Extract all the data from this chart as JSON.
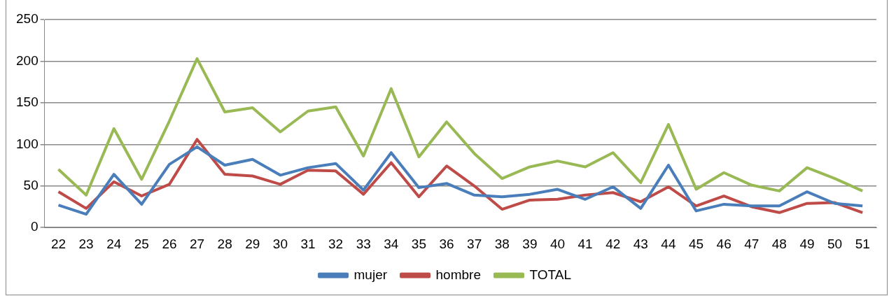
{
  "chart_data": {
    "type": "line",
    "categories": [
      "22",
      "23",
      "24",
      "25",
      "26",
      "27",
      "28",
      "29",
      "30",
      "31",
      "32",
      "33",
      "34",
      "35",
      "36",
      "37",
      "38",
      "39",
      "40",
      "41",
      "42",
      "43",
      "44",
      "45",
      "46",
      "47",
      "48",
      "49",
      "50",
      "51"
    ],
    "series": [
      {
        "name": "mujer",
        "color": "#4a7ebb",
        "values": [
          27,
          16,
          64,
          28,
          76,
          97,
          75,
          82,
          63,
          72,
          77,
          45,
          90,
          48,
          53,
          39,
          37,
          40,
          46,
          34,
          49,
          23,
          75,
          20,
          28,
          26,
          26,
          43,
          29,
          26
        ]
      },
      {
        "name": "hombre",
        "color": "#be4b48",
        "values": [
          43,
          23,
          55,
          38,
          52,
          106,
          64,
          62,
          52,
          69,
          68,
          40,
          78,
          37,
          74,
          50,
          22,
          33,
          34,
          39,
          42,
          31,
          49,
          26,
          38,
          25,
          18,
          29,
          30,
          18
        ]
      },
      {
        "name": "TOTAL",
        "color": "#98b954",
        "values": [
          70,
          39,
          119,
          58,
          128,
          203,
          139,
          144,
          115,
          140,
          145,
          86,
          167,
          85,
          127,
          89,
          59,
          73,
          80,
          73,
          90,
          54,
          124,
          46,
          66,
          51,
          44,
          72,
          59,
          44
        ]
      }
    ],
    "ylim": [
      0,
      250
    ],
    "yticks": [
      0,
      50,
      100,
      150,
      200,
      250
    ],
    "grid": "y",
    "legend": "bottom",
    "marker": "none",
    "line_style": "solid"
  }
}
